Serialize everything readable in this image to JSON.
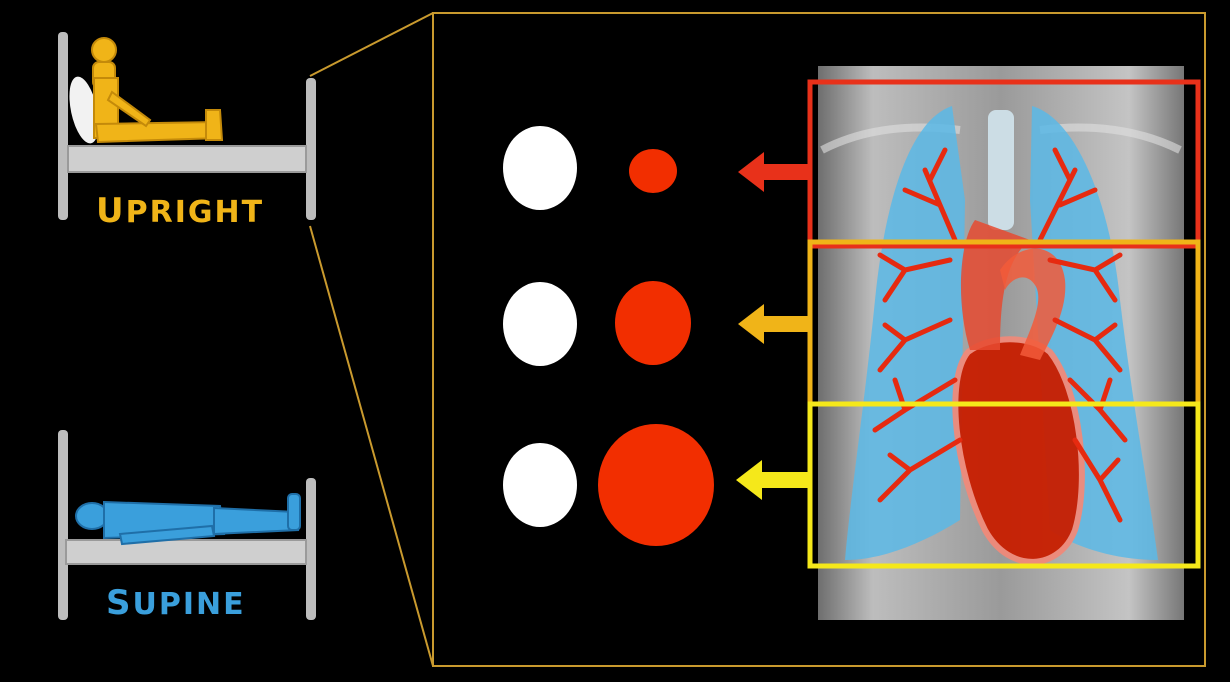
{
  "positions": [
    {
      "id": "upright",
      "label": "Upright",
      "color": "#f0b418"
    },
    {
      "id": "supine",
      "label": "Supine",
      "color": "#3a9fdc"
    }
  ],
  "zones": [
    {
      "id": "upper",
      "color": "#e8311a"
    },
    {
      "id": "middle",
      "color": "#f0b418"
    },
    {
      "id": "lower",
      "color": "#f5e81a"
    }
  ],
  "colors": {
    "frame": "#c99a2e",
    "vessel": "#f22e00",
    "lung": "#5bb8e6",
    "bed": "#c8c8c8",
    "white_circle": "#ffffff"
  }
}
